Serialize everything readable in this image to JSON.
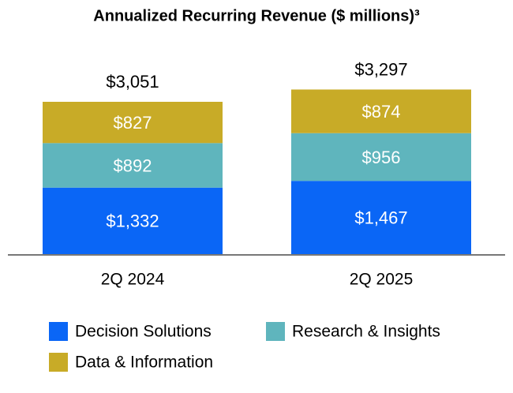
{
  "chart_data": {
    "type": "stacked_bar",
    "title": "Annualized Recurring Revenue ($ millions)³",
    "categories": [
      "2Q 2024",
      "2Q 2025"
    ],
    "series": [
      {
        "name": "Decision Solutions",
        "color": "#0a66f6",
        "values": [
          1332,
          1467
        ],
        "value_labels": [
          "$1,332",
          "$1,467"
        ]
      },
      {
        "name": "Research & Insights",
        "color": "#5fb5bd",
        "values": [
          892,
          956
        ],
        "value_labels": [
          "$892",
          "$956"
        ]
      },
      {
        "name": "Data & Information",
        "color": "#c8ab27",
        "values": [
          827,
          874
        ],
        "value_labels": [
          "$827",
          "$874"
        ]
      }
    ],
    "totals": [
      3051,
      3297
    ],
    "total_labels": [
      "$3,051",
      "$3,297"
    ]
  }
}
